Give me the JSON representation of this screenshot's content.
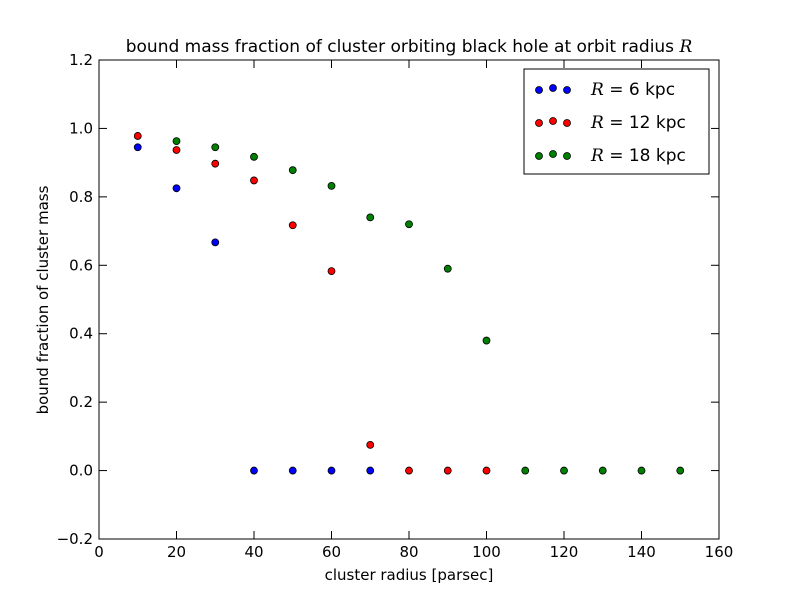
{
  "chart_data": {
    "type": "scatter",
    "title": "bound mass fraction of cluster orbiting black hole at orbit radius R",
    "title_prefix": "bound mass fraction of cluster orbiting black hole at orbit radius ",
    "title_var": "R",
    "xlabel": "cluster radius [parsec]",
    "ylabel": "bound fraction of cluster mass",
    "xlim": [
      0,
      160
    ],
    "ylim": [
      -0.2,
      1.2
    ],
    "xticks": [
      0,
      20,
      40,
      60,
      80,
      100,
      120,
      140,
      160
    ],
    "xtick_labels": [
      "0",
      "20",
      "40",
      "60",
      "80",
      "100",
      "120",
      "140",
      "160"
    ],
    "yticks": [
      -0.2,
      0.0,
      0.2,
      0.4,
      0.6,
      0.8,
      1.0,
      1.2
    ],
    "ytick_labels": [
      "−0.2",
      "0.0",
      "0.2",
      "0.4",
      "0.6",
      "0.8",
      "1.0",
      "1.2"
    ],
    "grid": false,
    "legend_position": "top-right",
    "series": [
      {
        "name": "R = 6 kpc",
        "legend_var": "R",
        "legend_rest": " = 6 kpc",
        "color": "#0000ff",
        "x": [
          10,
          20,
          30,
          40,
          50,
          60,
          70
        ],
        "y": [
          0.945,
          0.825,
          0.667,
          0.0,
          0.0,
          0.0,
          0.0
        ]
      },
      {
        "name": "R = 12 kpc",
        "legend_var": "R",
        "legend_rest": " = 12 kpc",
        "color": "#ff0000",
        "x": [
          10,
          20,
          30,
          40,
          50,
          60,
          70,
          80,
          90,
          100
        ],
        "y": [
          0.978,
          0.937,
          0.897,
          0.848,
          0.717,
          0.583,
          0.075,
          0.0,
          0.0,
          0.0
        ]
      },
      {
        "name": "R = 18 kpc",
        "legend_var": "R",
        "legend_rest": " = 18 kpc",
        "color": "#008000",
        "x": [
          20,
          30,
          40,
          50,
          60,
          70,
          80,
          90,
          100,
          110,
          120,
          130,
          140,
          150
        ],
        "y": [
          0.963,
          0.945,
          0.917,
          0.878,
          0.832,
          0.74,
          0.72,
          0.59,
          0.38,
          0.0,
          0.0,
          0.0,
          0.0,
          0.0
        ]
      }
    ]
  }
}
